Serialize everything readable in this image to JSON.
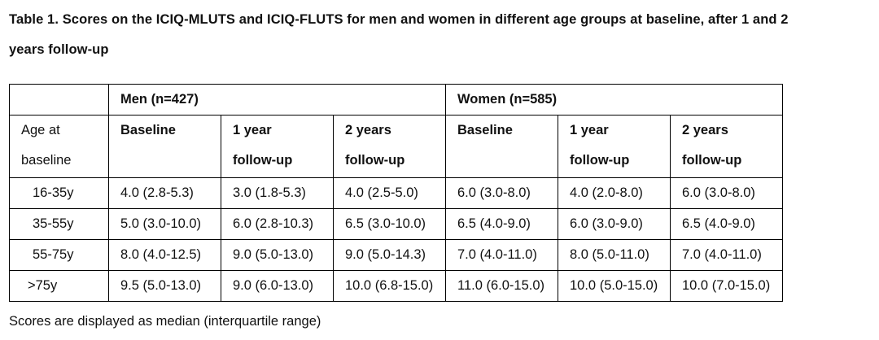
{
  "caption": {
    "line1": "Table 1. Scores on the ICIQ-MLUTS and ICIQ-FLUTS for men and women in different age groups at baseline, after 1 and 2",
    "line2": "years follow-up"
  },
  "table": {
    "groups": {
      "empty": "",
      "men": "Men (n=427)",
      "women": "Women (n=585)"
    },
    "headers": {
      "age_line1": "Age at",
      "age_line2": "baseline",
      "men": [
        {
          "line1": "Baseline",
          "line2": ""
        },
        {
          "line1": "1 year",
          "line2": "follow-up"
        },
        {
          "line1": "2 years",
          "line2": "follow-up"
        }
      ],
      "women": [
        {
          "line1": "Baseline",
          "line2": ""
        },
        {
          "line1": "1 year",
          "line2": "follow-up"
        },
        {
          "line1": "2 years",
          "line2": "follow-up"
        }
      ]
    },
    "rows": [
      {
        "age": "16-35y",
        "men": [
          "4.0 (2.8-5.3)",
          "3.0 (1.8-5.3)",
          "4.0 (2.5-5.0)"
        ],
        "women": [
          "6.0 (3.0-8.0)",
          "4.0 (2.0-8.0)",
          "6.0 (3.0-8.0)"
        ]
      },
      {
        "age": "35-55y",
        "men": [
          "5.0 (3.0-10.0)",
          "6.0 (2.8-10.3)",
          "6.5 (3.0-10.0)"
        ],
        "women": [
          "6.5 (4.0-9.0)",
          "6.0 (3.0-9.0)",
          "6.5 (4.0-9.0)"
        ]
      },
      {
        "age": "55-75y",
        "men": [
          "8.0 (4.0-12.5)",
          "9.0 (5.0-13.0)",
          "9.0 (5.0-14.3)"
        ],
        "women": [
          "7.0 (4.0-11.0)",
          "8.0 (5.0-11.0)",
          "7.0 (4.0-11.0)"
        ]
      },
      {
        "age": ">75y",
        "men": [
          "9.5 (5.0-13.0)",
          "9.0 (6.0-13.0)",
          "10.0 (6.8-15.0)"
        ],
        "women": [
          "11.0 (6.0-15.0)",
          "10.0 (5.0-15.0)",
          "10.0 (7.0-15.0)"
        ]
      }
    ]
  },
  "footnote": "Scores are displayed as median (interquartile range)"
}
